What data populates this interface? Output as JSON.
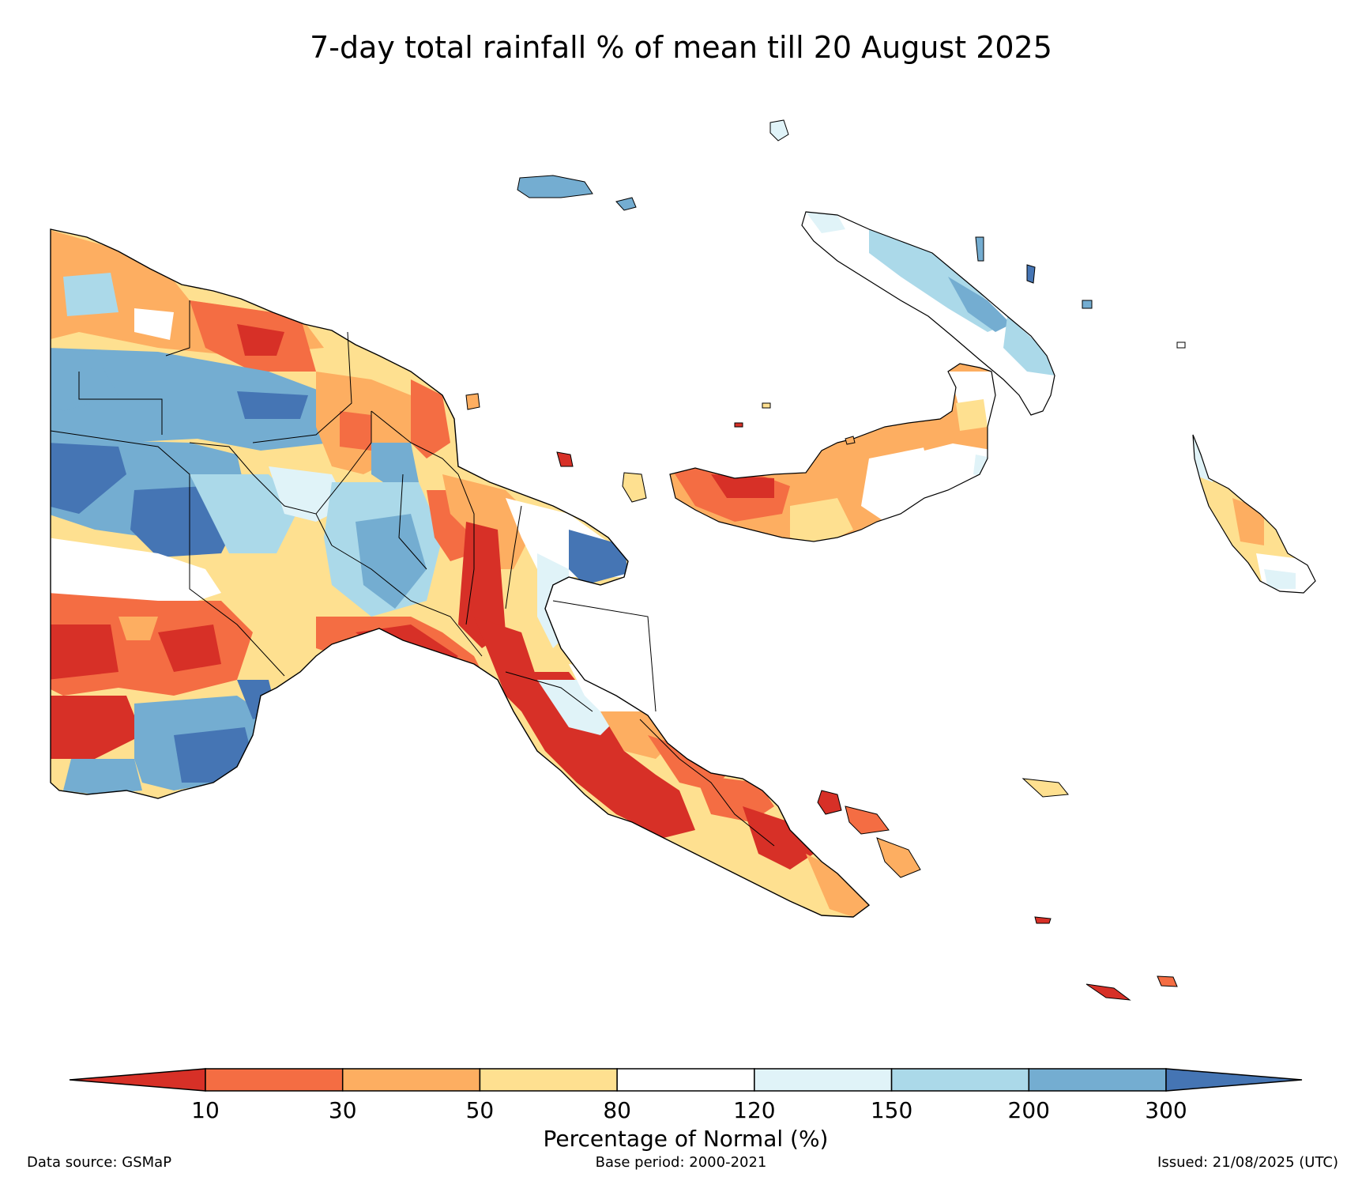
{
  "title": "7-day total rainfall % of mean till 20 August 2025",
  "legend": {
    "title": "Percentage of Normal (%)",
    "ticks": [
      "10",
      "30",
      "50",
      "80",
      "120",
      "150",
      "200",
      "300"
    ],
    "colors": [
      "#d73027",
      "#f46d43",
      "#fdae61",
      "#fee090",
      "#ffffff",
      "#e0f3f8",
      "#abd9e9",
      "#74add1",
      "#4575b4"
    ]
  },
  "footer": {
    "source": "Data source: GSMaP",
    "base_period": "Base period: 2000-2021",
    "issued": "Issued: 21/08/2025 (UTC)"
  },
  "map": {
    "region": "Papua New Guinea",
    "palette": {
      "dark_red": "#d73027",
      "red_orange": "#f46d43",
      "orange": "#fdae61",
      "yellow": "#fee090",
      "white": "#ffffff",
      "pale_blue": "#e0f3f8",
      "light_blue": "#abd9e9",
      "mid_blue": "#74add1",
      "dark_blue": "#4575b4"
    }
  }
}
